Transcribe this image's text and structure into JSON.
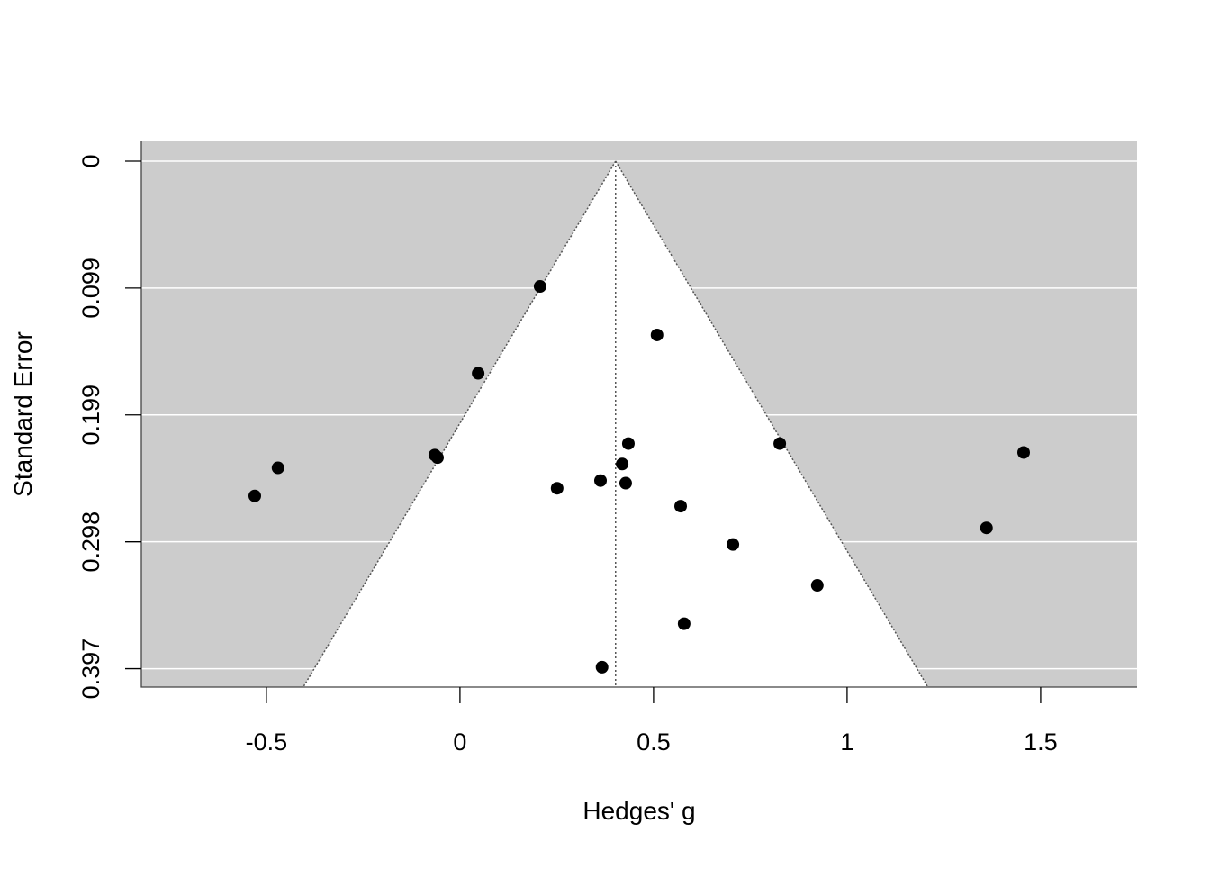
{
  "chart_data": {
    "type": "scatter",
    "subtype": "funnel plot",
    "title": "",
    "xlabel": "Hedges' g",
    "ylabel": "Standard Error",
    "xlim": [
      -0.823,
      1.749
    ],
    "ylim": [
      0.4116,
      -0.0155
    ],
    "y_reversed": true,
    "x_ticks": [
      -0.5,
      0,
      0.5,
      1,
      1.5
    ],
    "x_tick_labels": [
      "-0.5",
      "0",
      "0.5",
      "1",
      "1.5"
    ],
    "y_ticks": [
      0,
      0.0993,
      0.1986,
      0.2979,
      0.3972
    ],
    "y_tick_labels": [
      "0",
      "0.099",
      "0.199",
      "0.298",
      "0.397"
    ],
    "grid": "horizontal white lines at y ticks",
    "center_estimate": 0.402,
    "funnel_z": 1.96,
    "colors": {
      "background": "#cccccc",
      "funnel": "#ffffff",
      "points": "#000000",
      "gridline": "#ffffff"
    },
    "points": [
      {
        "x": 0.207,
        "y": 0.098
      },
      {
        "x": 0.509,
        "y": 0.136
      },
      {
        "x": 0.047,
        "y": 0.166
      },
      {
        "x": 0.435,
        "y": 0.221
      },
      {
        "x": 0.826,
        "y": 0.221
      },
      {
        "x": 1.456,
        "y": 0.228
      },
      {
        "x": -0.065,
        "y": 0.23
      },
      {
        "x": -0.058,
        "y": 0.232
      },
      {
        "x": -0.47,
        "y": 0.24
      },
      {
        "x": 0.419,
        "y": 0.237
      },
      {
        "x": 0.363,
        "y": 0.25
      },
      {
        "x": 0.428,
        "y": 0.252
      },
      {
        "x": 0.251,
        "y": 0.256
      },
      {
        "x": -0.53,
        "y": 0.262
      },
      {
        "x": 0.57,
        "y": 0.27
      },
      {
        "x": 1.36,
        "y": 0.287
      },
      {
        "x": 0.705,
        "y": 0.3
      },
      {
        "x": 0.923,
        "y": 0.332
      },
      {
        "x": 0.579,
        "y": 0.362
      },
      {
        "x": 0.367,
        "y": 0.396
      }
    ]
  }
}
